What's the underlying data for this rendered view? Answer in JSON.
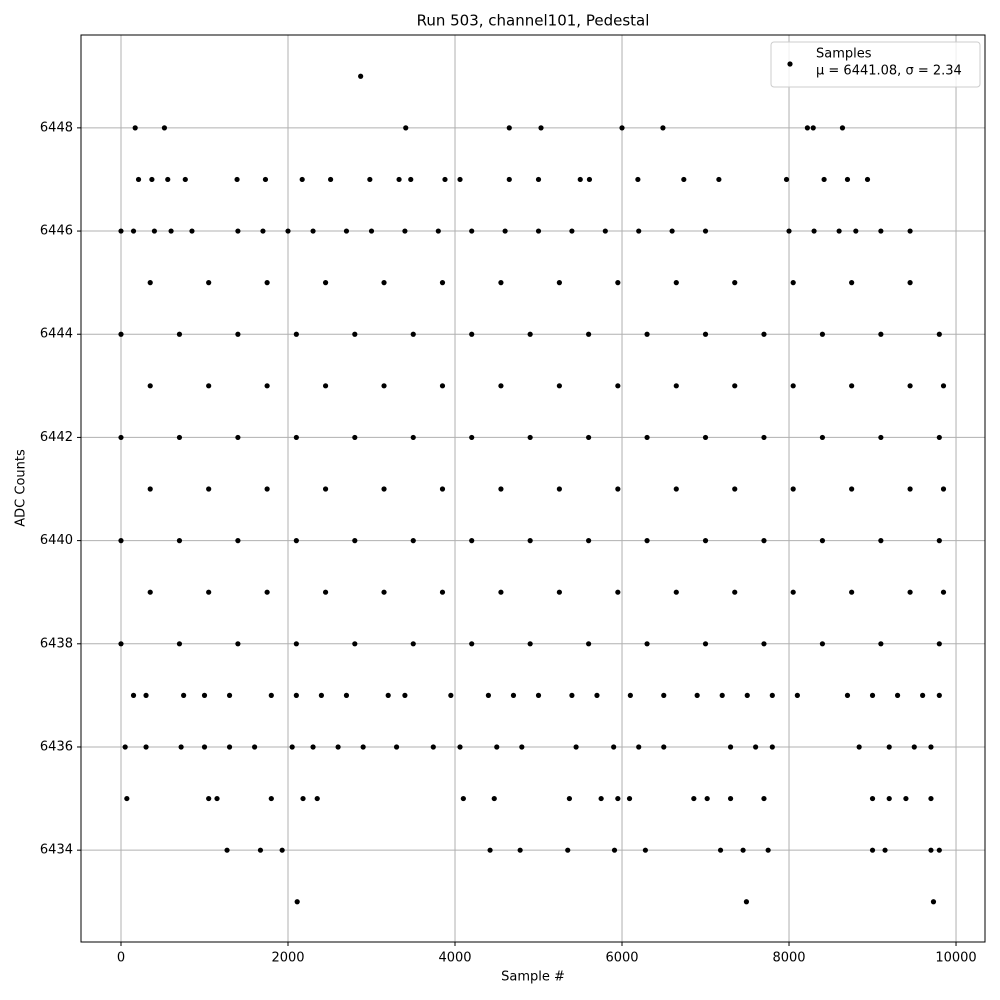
{
  "chart_data": {
    "type": "scatter",
    "title": "Run 503, channel101, Pedestal",
    "x_label": "Sample #",
    "y_label": "ADC Counts",
    "xlim": [
      -479,
      10347
    ],
    "ylim": [
      6432.22,
      6449.8
    ],
    "xticks": [
      0,
      2000,
      4000,
      6000,
      8000,
      10000
    ],
    "yticks": [
      6434,
      6436,
      6438,
      6440,
      6442,
      6444,
      6446,
      6448
    ],
    "grid": true,
    "legend_position": "upper right",
    "legend_note": "μ = 6441.08, σ = 2.34",
    "x": [
      2870,
      170,
      520,
      3410,
      4650,
      5030,
      6000,
      6490,
      8220,
      8290,
      8640,
      210,
      370,
      560,
      770,
      1390,
      1730,
      2170,
      2510,
      2980,
      3330,
      3470,
      3880,
      4060,
      4650,
      5000,
      5500,
      5610,
      6190,
      6740,
      7160,
      7970,
      8420,
      8700,
      8940,
      0,
      150,
      400,
      600,
      850,
      1400,
      1700,
      2000,
      2300,
      2700,
      3000,
      3400,
      3800,
      4200,
      4600,
      5000,
      5400,
      5800,
      6200,
      6600,
      7000,
      8000,
      8300,
      8600,
      8800,
      9100,
      9450,
      350,
      1050,
      1750,
      2450,
      3150,
      3850,
      4550,
      5250,
      5950,
      6650,
      7350,
      8050,
      8750,
      9450,
      0,
      700,
      1400,
      2100,
      2800,
      3500,
      4200,
      4900,
      5600,
      6300,
      7000,
      7700,
      8400,
      9100,
      9800,
      350,
      1050,
      1750,
      2450,
      3150,
      3850,
      4550,
      5250,
      5950,
      6650,
      7350,
      8050,
      8750,
      9450,
      9850,
      0,
      700,
      1400,
      2100,
      2800,
      3500,
      4200,
      4900,
      5600,
      6300,
      7000,
      7700,
      8400,
      9100,
      9800,
      350,
      1050,
      1750,
      2450,
      3150,
      3850,
      4550,
      5250,
      5950,
      6650,
      7350,
      8050,
      8750,
      9450,
      9850,
      0,
      700,
      1400,
      2100,
      2800,
      3500,
      4200,
      4900,
      5600,
      6300,
      7000,
      7700,
      8400,
      9100,
      9800,
      350,
      1050,
      1750,
      2450,
      3150,
      3850,
      4550,
      5250,
      5950,
      6650,
      7350,
      8050,
      8750,
      9450,
      9850,
      0,
      700,
      1400,
      2100,
      2800,
      3500,
      4200,
      4900,
      5600,
      6300,
      7000,
      7700,
      8400,
      9100,
      9800,
      150,
      300,
      750,
      1000,
      1300,
      1800,
      2100,
      2400,
      2700,
      3200,
      3400,
      3950,
      4400,
      4700,
      5000,
      5400,
      5700,
      6100,
      6500,
      6900,
      7200,
      7500,
      7800,
      8100,
      8700,
      9000,
      9300,
      9600,
      9800,
      50,
      300,
      720,
      1000,
      1300,
      1600,
      2050,
      2300,
      2600,
      2900,
      3300,
      3740,
      4060,
      4500,
      4800,
      5450,
      5900,
      6200,
      6500,
      7300,
      7600,
      7800,
      8840,
      9200,
      9500,
      9700,
      70,
      1050,
      1150,
      1800,
      2180,
      2350,
      4100,
      4470,
      5370,
      5750,
      5950,
      6090,
      6860,
      7020,
      7300,
      7700,
      9000,
      9200,
      9400,
      9700,
      1270,
      1670,
      1930,
      4420,
      4780,
      5350,
      5910,
      6280,
      7180,
      7450,
      7750,
      9000,
      9150,
      9700,
      9800,
      2110,
      7490,
      9730
    ],
    "series": [
      {
        "name": "Samples",
        "color": "#000000",
        "values": [
          6449,
          6448,
          6448,
          6448,
          6448,
          6448,
          6448,
          6448,
          6448,
          6448,
          6448,
          6447,
          6447,
          6447,
          6447,
          6447,
          6447,
          6447,
          6447,
          6447,
          6447,
          6447,
          6447,
          6447,
          6447,
          6447,
          6447,
          6447,
          6447,
          6447,
          6447,
          6447,
          6447,
          6447,
          6447,
          6446,
          6446,
          6446,
          6446,
          6446,
          6446,
          6446,
          6446,
          6446,
          6446,
          6446,
          6446,
          6446,
          6446,
          6446,
          6446,
          6446,
          6446,
          6446,
          6446,
          6446,
          6446,
          6446,
          6446,
          6446,
          6446,
          6446,
          6445,
          6445,
          6445,
          6445,
          6445,
          6445,
          6445,
          6445,
          6445,
          6445,
          6445,
          6445,
          6445,
          6445,
          6444,
          6444,
          6444,
          6444,
          6444,
          6444,
          6444,
          6444,
          6444,
          6444,
          6444,
          6444,
          6444,
          6444,
          6444,
          6443,
          6443,
          6443,
          6443,
          6443,
          6443,
          6443,
          6443,
          6443,
          6443,
          6443,
          6443,
          6443,
          6443,
          6443,
          6442,
          6442,
          6442,
          6442,
          6442,
          6442,
          6442,
          6442,
          6442,
          6442,
          6442,
          6442,
          6442,
          6442,
          6442,
          6441,
          6441,
          6441,
          6441,
          6441,
          6441,
          6441,
          6441,
          6441,
          6441,
          6441,
          6441,
          6441,
          6441,
          6441,
          6440,
          6440,
          6440,
          6440,
          6440,
          6440,
          6440,
          6440,
          6440,
          6440,
          6440,
          6440,
          6440,
          6440,
          6440,
          6439,
          6439,
          6439,
          6439,
          6439,
          6439,
          6439,
          6439,
          6439,
          6439,
          6439,
          6439,
          6439,
          6439,
          6439,
          6438,
          6438,
          6438,
          6438,
          6438,
          6438,
          6438,
          6438,
          6438,
          6438,
          6438,
          6438,
          6438,
          6438,
          6438,
          6437,
          6437,
          6437,
          6437,
          6437,
          6437,
          6437,
          6437,
          6437,
          6437,
          6437,
          6437,
          6437,
          6437,
          6437,
          6437,
          6437,
          6437,
          6437,
          6437,
          6437,
          6437,
          6437,
          6437,
          6437,
          6437,
          6437,
          6437,
          6437,
          6436,
          6436,
          6436,
          6436,
          6436,
          6436,
          6436,
          6436,
          6436,
          6436,
          6436,
          6436,
          6436,
          6436,
          6436,
          6436,
          6436,
          6436,
          6436,
          6436,
          6436,
          6436,
          6436,
          6436,
          6436,
          6436,
          6435,
          6435,
          6435,
          6435,
          6435,
          6435,
          6435,
          6435,
          6435,
          6435,
          6435,
          6435,
          6435,
          6435,
          6435,
          6435,
          6435,
          6435,
          6435,
          6435,
          6434,
          6434,
          6434,
          6434,
          6434,
          6434,
          6434,
          6434,
          6434,
          6434,
          6434,
          6434,
          6434,
          6434,
          6434,
          6433,
          6433,
          6433
        ]
      }
    ]
  }
}
